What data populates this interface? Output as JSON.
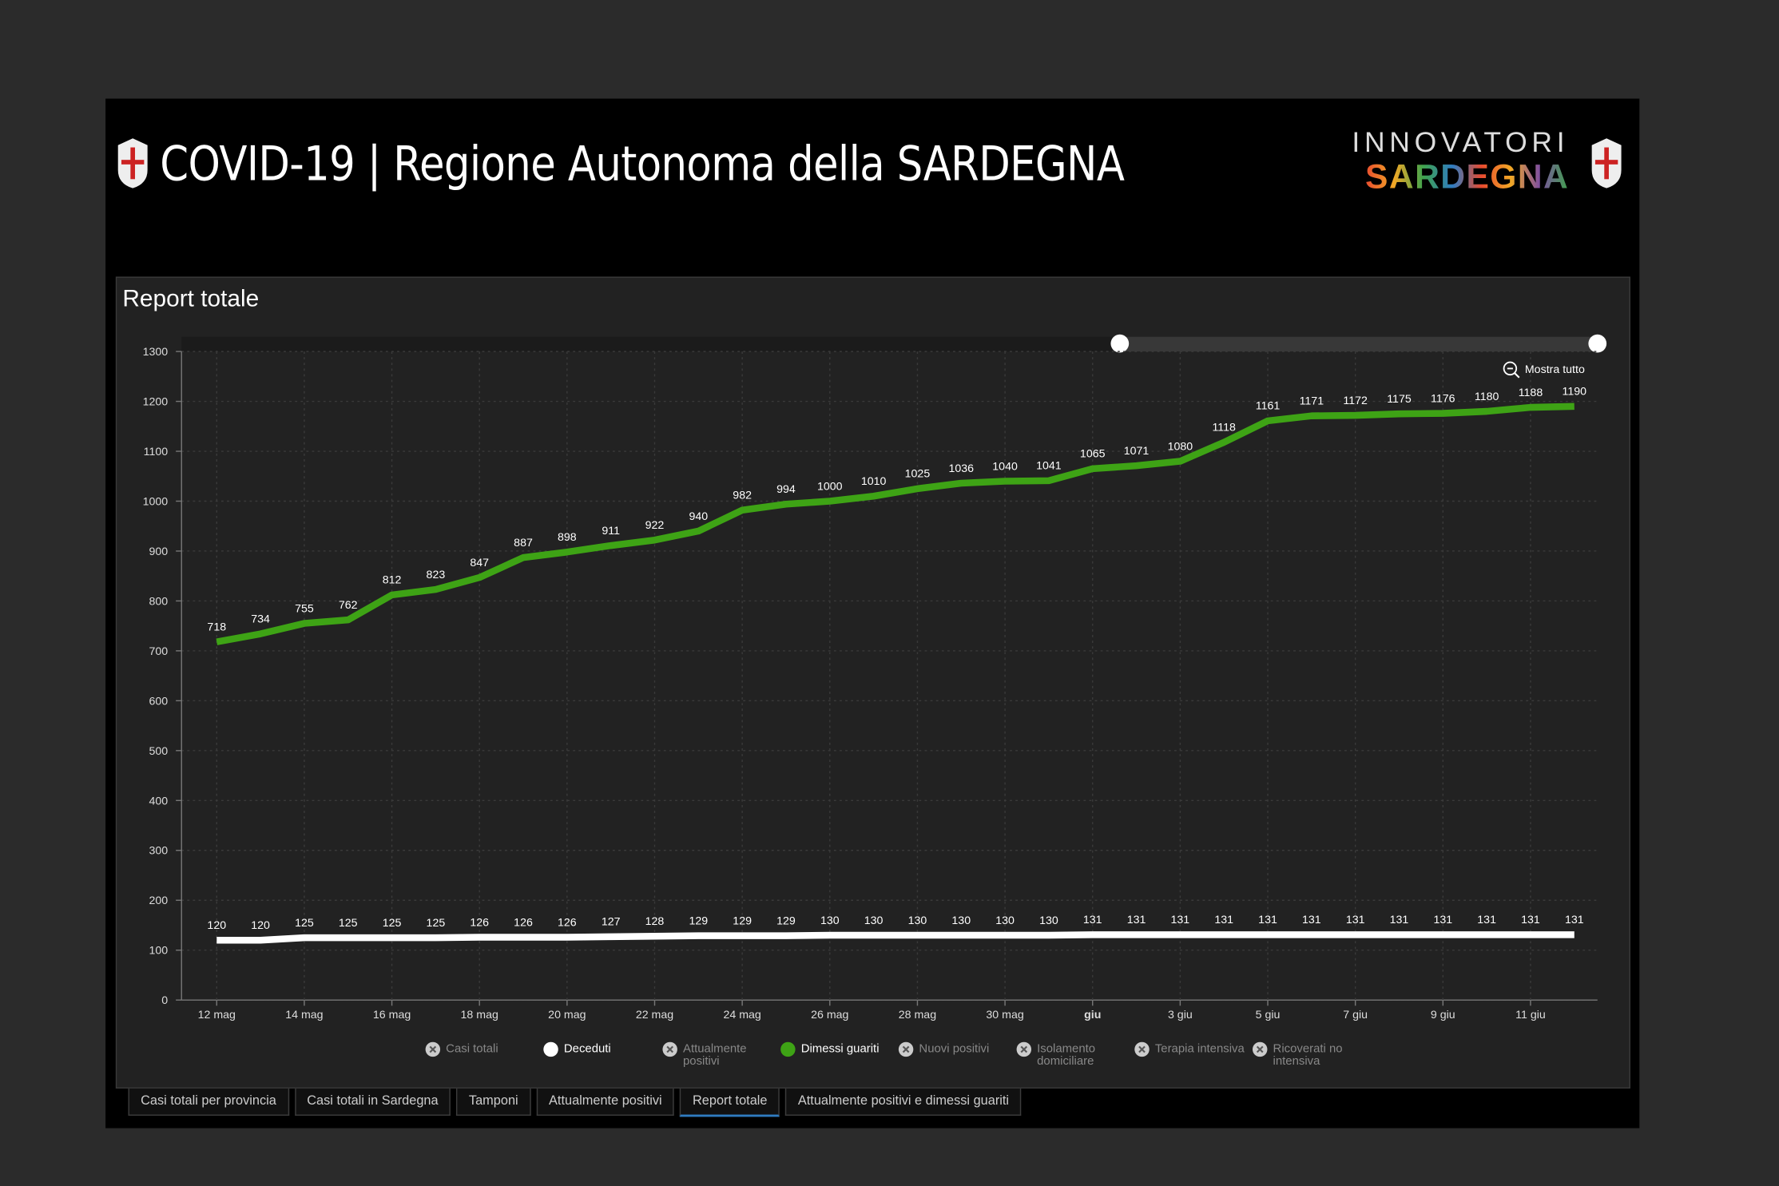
{
  "header": {
    "title": "COVID-19 | Regione Autonoma della SARDEGNA",
    "logo_top": "INNOVATORI",
    "logo_bottom": "SARDEGNA"
  },
  "panel_title": "Report totale",
  "zoom_button": "Mostra tutto",
  "tabs": [
    "Casi totali per provincia",
    "Casi totali in Sardegna",
    "Tamponi",
    "Attualmente positivi",
    "Report totale",
    "Attualmente positivi e dimessi guariti"
  ],
  "active_tab": 4,
  "chart_data": {
    "type": "line",
    "categories": [
      "12 mag",
      null,
      "14 mag",
      null,
      "16 mag",
      null,
      "18 mag",
      null,
      "20 mag",
      null,
      "22 mag",
      null,
      "24 mag",
      null,
      "26 mag",
      null,
      "28 mag",
      null,
      "30 mag",
      null,
      "giu",
      null,
      "3 giu",
      null,
      "5 giu",
      null,
      "7 giu",
      null,
      "9 giu",
      null,
      "11 giu",
      null
    ],
    "ylim": [
      0,
      1300
    ],
    "yticks": [
      0,
      100,
      200,
      300,
      400,
      500,
      600,
      700,
      800,
      900,
      1000,
      1100,
      1200,
      1300
    ],
    "grid": true,
    "series": [
      {
        "name": "Casi totali",
        "visible": false
      },
      {
        "name": "Deceduti",
        "visible": true,
        "color": "#ffffff",
        "values": [
          120,
          120,
          125,
          125,
          125,
          125,
          126,
          126,
          126,
          127,
          128,
          129,
          129,
          129,
          130,
          130,
          130,
          130,
          130,
          130,
          131,
          131,
          131,
          131,
          131,
          131,
          131,
          131,
          131,
          131,
          131,
          131
        ]
      },
      {
        "name": "Attualmente positivi",
        "visible": false
      },
      {
        "name": "Dimessi guariti",
        "visible": true,
        "color": "#3ea315",
        "values": [
          718,
          734,
          755,
          762,
          812,
          823,
          847,
          887,
          898,
          911,
          922,
          940,
          982,
          994,
          1000,
          1010,
          1025,
          1036,
          1040,
          1041,
          1065,
          1071,
          1080,
          1118,
          1161,
          1171,
          1172,
          1175,
          1176,
          1180,
          1188,
          1190
        ]
      },
      {
        "name": "Nuovi positivi",
        "visible": false
      },
      {
        "name": "Isolamento domiciliare",
        "visible": false
      },
      {
        "name": "Terapia intensiva",
        "visible": false
      },
      {
        "name": "Ricoverati no intensiva",
        "visible": false
      }
    ]
  }
}
